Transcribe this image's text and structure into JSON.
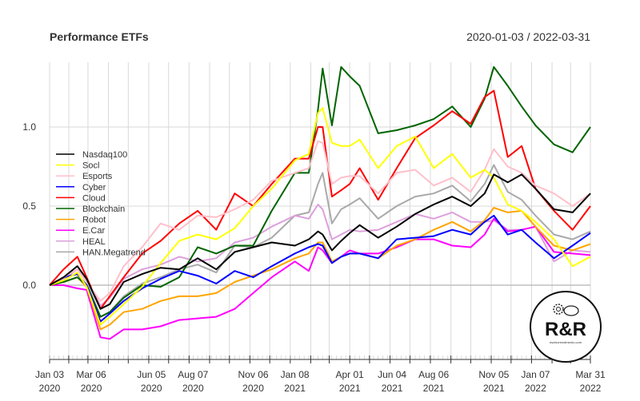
{
  "chart_data": {
    "type": "line",
    "title": "Performance ETFs",
    "date_range": "2020-01-03 / 2022-03-31",
    "xlabel": "",
    "ylabel": "",
    "ylim": [
      -0.47,
      1.42
    ],
    "y_ticks": [
      "0.0",
      "0.5",
      "1.0"
    ],
    "y_tick_values": [
      0,
      0.5,
      1.0
    ],
    "x_ticks": [
      {
        "date": "2020-01-03",
        "line1": "Jan 03",
        "line2": "2020"
      },
      {
        "date": "2020-03-06",
        "line1": "Mar 06",
        "line2": "2020"
      },
      {
        "date": "2020-06-05",
        "line1": "Jun 05",
        "line2": "2020"
      },
      {
        "date": "2020-08-07",
        "line1": "Aug 07",
        "line2": "2020"
      },
      {
        "date": "2020-11-06",
        "line1": "Nov 06",
        "line2": "2020"
      },
      {
        "date": "2021-01-08",
        "line1": "Jan 08",
        "line2": "2021"
      },
      {
        "date": "2021-04-01",
        "line1": "Apr 01",
        "line2": "2021"
      },
      {
        "date": "2021-06-04",
        "line1": "Jun 04",
        "line2": "2021"
      },
      {
        "date": "2021-08-06",
        "line1": "Aug 06",
        "line2": "2021"
      },
      {
        "date": "2021-11-05",
        "line1": "Nov 05",
        "line2": "2021"
      },
      {
        "date": "2022-01-07",
        "line1": "Jan 07",
        "line2": "2022"
      },
      {
        "date": "2022-03-31",
        "line1": "Mar 31",
        "line2": "2022"
      }
    ],
    "grid": true,
    "legend_position": "left",
    "x": [
      "2020-01-03",
      "2020-01-24",
      "2020-02-14",
      "2020-02-28",
      "2020-03-20",
      "2020-04-03",
      "2020-04-24",
      "2020-05-22",
      "2020-06-19",
      "2020-07-17",
      "2020-08-14",
      "2020-09-11",
      "2020-10-09",
      "2020-11-06",
      "2020-12-04",
      "2021-01-08",
      "2021-01-29",
      "2021-02-12",
      "2021-02-19",
      "2021-03-05",
      "2021-03-19",
      "2021-04-01",
      "2021-04-16",
      "2021-05-14",
      "2021-06-11",
      "2021-07-09",
      "2021-08-06",
      "2021-09-03",
      "2021-10-01",
      "2021-10-22",
      "2021-11-05",
      "2021-11-26",
      "2021-12-17",
      "2022-01-07",
      "2022-02-04",
      "2022-03-04",
      "2022-03-31"
    ],
    "series": [
      {
        "name": "Nasdaq100",
        "color": "#000000",
        "values": [
          0,
          0.05,
          0.12,
          0.04,
          -0.15,
          -0.12,
          0.02,
          0.07,
          0.11,
          0.1,
          0.17,
          0.1,
          0.21,
          0.24,
          0.27,
          0.25,
          0.29,
          0.34,
          0.32,
          0.22,
          0.28,
          0.33,
          0.38,
          0.3,
          0.37,
          0.45,
          0.51,
          0.56,
          0.5,
          0.58,
          0.7,
          0.65,
          0.7,
          0.61,
          0.48,
          0.46,
          0.58
        ]
      },
      {
        "name": "Socl",
        "color": "#ffff00",
        "values": [
          0,
          0.03,
          0.08,
          -0.01,
          -0.25,
          -0.2,
          -0.12,
          -0.01,
          0.14,
          0.28,
          0.32,
          0.29,
          0.36,
          0.5,
          0.61,
          0.79,
          0.83,
          1.09,
          1.12,
          0.9,
          0.88,
          0.88,
          0.92,
          0.74,
          0.88,
          0.94,
          0.74,
          0.83,
          0.68,
          0.73,
          0.68,
          0.51,
          0.47,
          0.4,
          0.29,
          0.12,
          0.18
        ]
      },
      {
        "name": "Esports",
        "color": "#ffc0cb",
        "values": [
          0,
          0.05,
          0.1,
          0.02,
          -0.1,
          -0.05,
          0.12,
          0.24,
          0.39,
          0.35,
          0.44,
          0.43,
          0.48,
          0.54,
          0.66,
          0.71,
          0.74,
          0.91,
          0.9,
          0.64,
          0.68,
          0.69,
          0.69,
          0.58,
          0.71,
          0.73,
          0.63,
          0.68,
          0.59,
          0.73,
          0.86,
          0.75,
          0.71,
          0.63,
          0.58,
          0.5,
          0.58
        ]
      },
      {
        "name": "Cyber",
        "color": "#0000ff",
        "values": [
          0,
          0.05,
          0.07,
          0,
          -0.23,
          -0.18,
          -0.1,
          -0.02,
          0.04,
          0.09,
          0.06,
          0.01,
          0.09,
          0.05,
          0.12,
          0.2,
          0.24,
          0.26,
          0.25,
          0.14,
          0.18,
          0.2,
          0.2,
          0.17,
          0.29,
          0.3,
          0.31,
          0.35,
          0.32,
          0.4,
          0.44,
          0.32,
          0.35,
          0.27,
          0.17,
          0.25,
          0.33
        ]
      },
      {
        "name": "Cloud",
        "color": "#ff0000",
        "values": [
          0,
          0.1,
          0.18,
          0.05,
          -0.15,
          -0.07,
          0.05,
          0.2,
          0.28,
          0.39,
          0.47,
          0.35,
          0.58,
          0.5,
          0.64,
          0.8,
          0.8,
          1.0,
          1.0,
          0.56,
          0.6,
          0.64,
          0.74,
          0.54,
          0.74,
          0.93,
          1.01,
          1.1,
          1.02,
          1.19,
          1.23,
          0.81,
          0.88,
          0.61,
          0.47,
          0.35,
          0.5
        ]
      },
      {
        "name": "Blockchain",
        "color": "#006400",
        "values": [
          0,
          0.02,
          0.05,
          0,
          -0.2,
          -0.17,
          -0.08,
          0,
          -0.01,
          0.05,
          0.24,
          0.2,
          0.25,
          0.25,
          0.47,
          0.71,
          0.71,
          1.11,
          1.37,
          1.01,
          1.38,
          1.32,
          1.26,
          0.96,
          0.98,
          1.01,
          1.05,
          1.13,
          1.0,
          1.18,
          1.38,
          1.26,
          1.13,
          1.01,
          0.89,
          0.84,
          1.0
        ]
      },
      {
        "name": "Robot",
        "color": "#ffa500",
        "values": [
          0,
          0.02,
          0.05,
          -0.01,
          -0.28,
          -0.25,
          -0.17,
          -0.15,
          -0.1,
          -0.07,
          -0.07,
          -0.05,
          0.02,
          0.06,
          0.1,
          0.17,
          0.2,
          0.27,
          0.27,
          0.15,
          0.18,
          0.2,
          0.2,
          0.17,
          0.25,
          0.29,
          0.35,
          0.4,
          0.34,
          0.41,
          0.49,
          0.46,
          0.47,
          0.37,
          0.25,
          0.22,
          0.26
        ]
      },
      {
        "name": "E.Car",
        "color": "#ff00ff",
        "values": [
          0,
          0,
          -0.02,
          -0.03,
          -0.33,
          -0.34,
          -0.28,
          -0.28,
          -0.26,
          -0.22,
          -0.21,
          -0.2,
          -0.15,
          -0.05,
          0.05,
          0.15,
          0.09,
          0.24,
          0.22,
          0.14,
          0.18,
          0.22,
          0.2,
          0.2,
          0.24,
          0.29,
          0.29,
          0.25,
          0.24,
          0.32,
          0.42,
          0.34,
          0.35,
          0.37,
          0.21,
          0.2,
          0.19
        ]
      },
      {
        "name": "HEAL",
        "color": "#dda0dd",
        "values": [
          0,
          0.04,
          0.1,
          0.04,
          -0.13,
          -0.08,
          0.04,
          0.1,
          0.13,
          0.18,
          0.15,
          0.17,
          0.27,
          0.3,
          0.37,
          0.44,
          0.42,
          0.51,
          0.48,
          0.29,
          0.32,
          0.35,
          0.34,
          0.35,
          0.4,
          0.45,
          0.42,
          0.46,
          0.4,
          0.4,
          0.41,
          0.35,
          0.35,
          0.37,
          0.15,
          0.22,
          0.21
        ]
      },
      {
        "name": "HAN.Megatrend",
        "color": "#a9a9a9",
        "values": [
          0,
          0.04,
          0.1,
          0.02,
          -0.2,
          -0.17,
          -0.07,
          0.01,
          0.05,
          0.1,
          0.13,
          0.08,
          0.25,
          0.24,
          0.3,
          0.44,
          0.46,
          0.64,
          0.71,
          0.39,
          0.48,
          0.51,
          0.55,
          0.42,
          0.5,
          0.56,
          0.58,
          0.63,
          0.53,
          0.64,
          0.76,
          0.59,
          0.54,
          0.44,
          0.32,
          0.29,
          0.34
        ]
      }
    ]
  },
  "logo": {
    "text": "R&R",
    "subtext": "rischiorendimento.com"
  }
}
